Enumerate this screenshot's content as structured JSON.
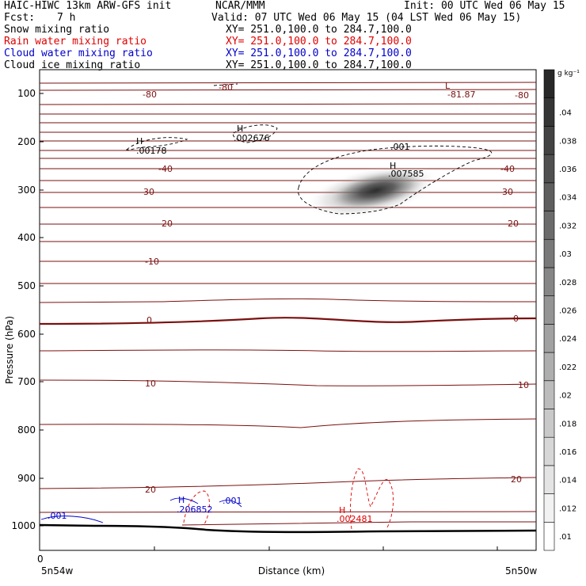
{
  "header": {
    "model": "HAIC-HIWC 13km ARW-GFS init",
    "org": "NCAR/MMM",
    "init": "Init: 00 UTC Wed 06 May 15",
    "fcst_label": "Fcst:",
    "fcst_value": "7 h",
    "valid": "Valid: 07 UTC Wed 06 May 15 (04 LST Wed 06 May 15)"
  },
  "fields": [
    {
      "name": "Snow mixing ratio",
      "xy": "XY= 251.0,100.0 to 284.7,100.0",
      "color": "#000000"
    },
    {
      "name": "Rain water mixing ratio",
      "xy": "XY= 251.0,100.0 to 284.7,100.0",
      "color": "#e00000"
    },
    {
      "name": "Cloud water mixing ratio",
      "xy": "XY= 251.0,100.0 to 284.7,100.0",
      "color": "#0000cc"
    },
    {
      "name": "Cloud ice mixing ratio",
      "xy": "XY= 251.0,100.0 to 284.7,100.0",
      "color": "#000000"
    }
  ],
  "chart_data": {
    "type": "contour-cross-section",
    "ylabel": "Pressure (hPa)",
    "xlabel": "Distance (km)",
    "ylim": [
      1050,
      50
    ],
    "yticks": [
      "100",
      "200",
      "300",
      "400",
      "500",
      "600",
      "700",
      "800",
      "900",
      "1000"
    ],
    "xtick_left": "5n54w",
    "xtick_right": "5n50w",
    "x_origin_label": "0",
    "colorbar": {
      "unit": "g kg⁻¹",
      "ticks": [
        ".01",
        ".012",
        ".014",
        ".016",
        ".018",
        ".02",
        ".022",
        ".024",
        ".026",
        ".028",
        ".03",
        ".032",
        ".034",
        ".036",
        ".038",
        ".04"
      ]
    },
    "isotherm_labels": [
      "-80",
      "-80",
      "-81.87",
      "-80",
      "-40",
      "-40",
      "-30",
      "-30",
      "-20",
      "-20",
      "-10",
      "0",
      "0",
      "10",
      "10",
      "20",
      "20"
    ],
    "extrema": [
      {
        "mark": "L",
        "value": ""
      },
      {
        "mark": "H",
        "value": ".00178"
      },
      {
        "mark": "H",
        "value": ".002676"
      },
      {
        "mark": "H",
        "value": ".007585"
      },
      {
        "mark": "H",
        "value": ".206852"
      },
      {
        "mark": "H",
        "value": ".002481"
      }
    ],
    "contour_labels": [
      ".001",
      ".001",
      ".001"
    ]
  }
}
